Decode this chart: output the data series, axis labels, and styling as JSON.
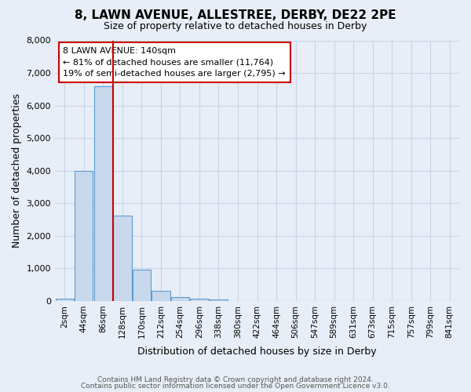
{
  "title": "8, LAWN AVENUE, ALLESTREE, DERBY, DE22 2PE",
  "subtitle": "Size of property relative to detached houses in Derby",
  "xlabel": "Distribution of detached houses by size in Derby",
  "ylabel": "Number of detached properties",
  "bin_labels": [
    "2sqm",
    "44sqm",
    "86sqm",
    "128sqm",
    "170sqm",
    "212sqm",
    "254sqm",
    "296sqm",
    "338sqm",
    "380sqm",
    "422sqm",
    "464sqm",
    "506sqm",
    "547sqm",
    "589sqm",
    "631sqm",
    "673sqm",
    "715sqm",
    "757sqm",
    "799sqm",
    "841sqm"
  ],
  "bar_values": [
    70,
    4000,
    6600,
    2630,
    960,
    310,
    120,
    80,
    55,
    0,
    0,
    0,
    0,
    0,
    0,
    0,
    0,
    0,
    0,
    0,
    0
  ],
  "bar_color": "#c9d9ed",
  "bar_edge_color": "#5b9bd5",
  "vline_x_index": 3,
  "vline_color": "#cc0000",
  "annotation_box_color": "#cc0000",
  "annotation_line1": "8 LAWN AVENUE: 140sqm",
  "annotation_line2": "← 81% of detached houses are smaller (11,764)",
  "annotation_line3": "19% of semi-detached houses are larger (2,795) →",
  "ylim": [
    0,
    8000
  ],
  "yticks": [
    0,
    1000,
    2000,
    3000,
    4000,
    5000,
    6000,
    7000,
    8000
  ],
  "grid_color": "#c8d4e8",
  "background_color": "#e8eef7",
  "footer_line1": "Contains HM Land Registry data © Crown copyright and database right 2024.",
  "footer_line2": "Contains public sector information licensed under the Open Government Licence v3.0."
}
